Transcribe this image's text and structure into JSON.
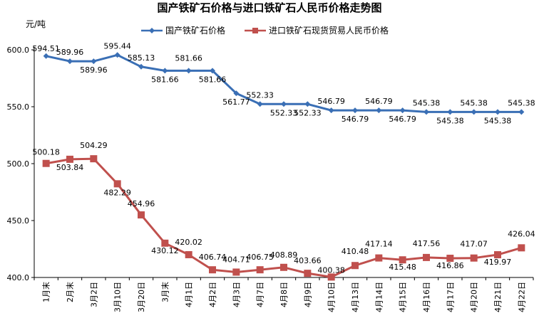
{
  "chart_data": {
    "type": "line",
    "title": "国产铁矿石价格与进口铁矿石人民币价格走势图",
    "ylabel": "元/吨",
    "ylim": [
      400,
      600
    ],
    "yticks": [
      "400.0",
      "450.0",
      "500.0",
      "550.0",
      "600.0"
    ],
    "legend_position": "top",
    "grid": false,
    "categories": [
      "1月末",
      "2月末",
      "3月2日",
      "3月10日",
      "3月20日",
      "3月末",
      "4月1日",
      "4月2日",
      "4月3日",
      "4月7日",
      "4月8日",
      "4月9日",
      "4月10日",
      "4月13日",
      "4月14日",
      "4月15日",
      "4月16日",
      "4月17日",
      "4月20日",
      "4月21日",
      "4月22日"
    ],
    "series": [
      {
        "name": "国产铁矿石价格",
        "color": "#3a6fb5",
        "marker": "diamond",
        "values": [
          594.51,
          589.96,
          589.96,
          595.44,
          585.13,
          581.66,
          581.66,
          581.66,
          561.77,
          552.33,
          552.33,
          552.33,
          546.79,
          546.79,
          546.79,
          546.79,
          545.38,
          545.38,
          545.38,
          545.38,
          545.38
        ],
        "labels": [
          "594.51",
          "589.96",
          "589.96",
          "595.44",
          "585.13",
          "581.66",
          "581.66",
          "581.66",
          "561.77",
          "552.33",
          "552.33",
          "552.33",
          "546.79",
          "546.79",
          "546.79",
          "546.79",
          "545.38",
          "545.38",
          "545.38",
          "545.38",
          "545.38"
        ]
      },
      {
        "name": "进口铁矿石现货贸易人民币价格",
        "color": "#c0504d",
        "marker": "square",
        "values": [
          500.18,
          503.84,
          504.29,
          482.29,
          454.96,
          430.12,
          420.02,
          406.74,
          404.71,
          406.75,
          408.89,
          403.66,
          400.38,
          410.48,
          417.14,
          415.48,
          417.56,
          416.86,
          417.07,
          419.97,
          426.04
        ],
        "labels": [
          "500.18",
          "503.84",
          "504.29",
          "482.29",
          "454.96",
          "430.12",
          "420.02",
          "406.74",
          "404.71",
          "406.75",
          "408.89",
          "403.66",
          "400.38",
          "410.48",
          "417.14",
          "415.48",
          "417.56",
          "416.86",
          "417.07",
          "419.97",
          "426.04"
        ]
      }
    ]
  }
}
